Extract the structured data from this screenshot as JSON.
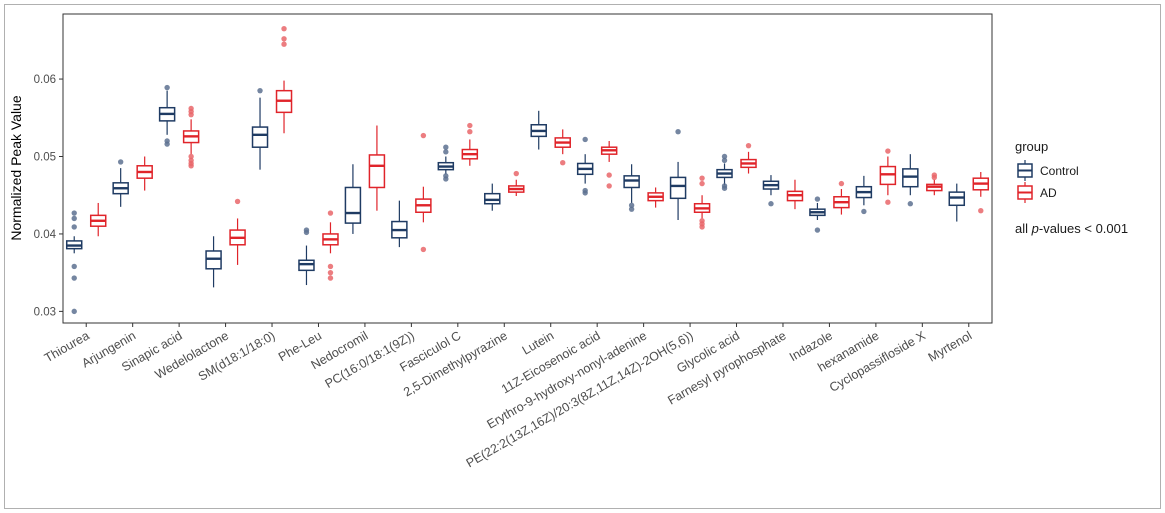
{
  "chart_data": {
    "type": "boxplot",
    "ylabel": "Normalized Peak Value",
    "xlabel": "",
    "ylim": [
      0.0285,
      0.0684
    ],
    "yticks": [
      0.03,
      0.04,
      0.05,
      0.06
    ],
    "ytick_labels": [
      "0.03",
      "0.04",
      "0.05",
      "0.06"
    ],
    "grid": false,
    "legend": {
      "title": "group",
      "position": "right",
      "entries": [
        {
          "name": "Control",
          "color": "#1f3b63"
        },
        {
          "name": "AD",
          "color": "#e0242a"
        }
      ]
    },
    "annotation": {
      "prefix": "all ",
      "italic": "p",
      "suffix": "-values < 0.001"
    },
    "categories": [
      "Thiourea",
      "Arjungenin",
      "Sinapic acid",
      "Wedelolactone",
      "SM(d18:1/18:0)",
      "Phe-Leu",
      "Nedocromil",
      "PC(16:0/18:1(9Z))",
      "Fasciculol C",
      "2,5-Dimethylpyrazine",
      "Lutein",
      "11Z-Eicosenoic acid",
      "Erythro-9-hydroxy-nonyl-adenine",
      "PE(22:2(13Z,16Z)/20:3(8Z,11Z,14Z)-2OH(5,6))",
      "Glycolic acid",
      "Farnesyl pyrophosphate",
      "Indazole",
      "hexanamide",
      "Cyclopassifloside X",
      "Myrtenol"
    ],
    "series": [
      {
        "name": "Control",
        "boxes": [
          {
            "whisker_low": 0.0375,
            "q1": 0.0381,
            "median": 0.0385,
            "q3": 0.0391,
            "whisker_high": 0.0397,
            "outliers": [
              0.03,
              0.0343,
              0.0358,
              0.0409,
              0.042,
              0.0427
            ]
          },
          {
            "whisker_low": 0.0435,
            "q1": 0.0452,
            "median": 0.0459,
            "q3": 0.0466,
            "whisker_high": 0.0485,
            "outliers": [
              0.0493
            ]
          },
          {
            "whisker_low": 0.0528,
            "q1": 0.0546,
            "median": 0.0555,
            "q3": 0.0563,
            "whisker_high": 0.0585,
            "outliers": [
              0.0516,
              0.052,
              0.0589
            ]
          },
          {
            "whisker_low": 0.0331,
            "q1": 0.0355,
            "median": 0.0368,
            "q3": 0.0378,
            "whisker_high": 0.0397,
            "outliers": []
          },
          {
            "whisker_low": 0.0483,
            "q1": 0.0512,
            "median": 0.0528,
            "q3": 0.0538,
            "whisker_high": 0.0576,
            "outliers": [
              0.0585
            ]
          },
          {
            "whisker_low": 0.0334,
            "q1": 0.0353,
            "median": 0.0361,
            "q3": 0.0366,
            "whisker_high": 0.0385,
            "outliers": [
              0.0402,
              0.0405
            ]
          },
          {
            "whisker_low": 0.04,
            "q1": 0.0414,
            "median": 0.0427,
            "q3": 0.046,
            "whisker_high": 0.049,
            "outliers": []
          },
          {
            "whisker_low": 0.0383,
            "q1": 0.0395,
            "median": 0.0405,
            "q3": 0.0416,
            "whisker_high": 0.0443,
            "outliers": []
          },
          {
            "whisker_low": 0.0477,
            "q1": 0.0483,
            "median": 0.0487,
            "q3": 0.0492,
            "whisker_high": 0.05,
            "outliers": [
              0.0471,
              0.0475,
              0.0506,
              0.0512
            ]
          },
          {
            "whisker_low": 0.043,
            "q1": 0.0439,
            "median": 0.0444,
            "q3": 0.0452,
            "whisker_high": 0.0465,
            "outliers": []
          },
          {
            "whisker_low": 0.0509,
            "q1": 0.0526,
            "median": 0.0533,
            "q3": 0.0541,
            "whisker_high": 0.0559,
            "outliers": []
          },
          {
            "whisker_low": 0.0465,
            "q1": 0.0477,
            "median": 0.0484,
            "q3": 0.0491,
            "whisker_high": 0.0503,
            "outliers": [
              0.0453,
              0.0456,
              0.0522
            ]
          },
          {
            "whisker_low": 0.044,
            "q1": 0.046,
            "median": 0.0469,
            "q3": 0.0475,
            "whisker_high": 0.049,
            "outliers": [
              0.0432,
              0.0437
            ]
          },
          {
            "whisker_low": 0.0418,
            "q1": 0.0446,
            "median": 0.0462,
            "q3": 0.0473,
            "whisker_high": 0.0493,
            "outliers": [
              0.0532
            ]
          },
          {
            "whisker_low": 0.0463,
            "q1": 0.0473,
            "median": 0.0478,
            "q3": 0.0483,
            "whisker_high": 0.0491,
            "outliers": [
              0.0459,
              0.0462,
              0.0495,
              0.05
            ]
          },
          {
            "whisker_low": 0.045,
            "q1": 0.0458,
            "median": 0.0463,
            "q3": 0.0468,
            "whisker_high": 0.0476,
            "outliers": [
              0.0439
            ]
          },
          {
            "whisker_low": 0.0418,
            "q1": 0.0424,
            "median": 0.0428,
            "q3": 0.0432,
            "whisker_high": 0.044,
            "outliers": [
              0.0405,
              0.0445
            ]
          },
          {
            "whisker_low": 0.0437,
            "q1": 0.0447,
            "median": 0.0454,
            "q3": 0.0461,
            "whisker_high": 0.0475,
            "outliers": [
              0.0429
            ]
          },
          {
            "whisker_low": 0.045,
            "q1": 0.0461,
            "median": 0.0474,
            "q3": 0.0484,
            "whisker_high": 0.0503,
            "outliers": [
              0.0439
            ]
          },
          {
            "whisker_low": 0.0416,
            "q1": 0.0437,
            "median": 0.0447,
            "q3": 0.0454,
            "whisker_high": 0.0465,
            "outliers": []
          }
        ]
      },
      {
        "name": "AD",
        "boxes": [
          {
            "whisker_low": 0.0397,
            "q1": 0.041,
            "median": 0.0417,
            "q3": 0.0424,
            "whisker_high": 0.044,
            "outliers": []
          },
          {
            "whisker_low": 0.0456,
            "q1": 0.0472,
            "median": 0.048,
            "q3": 0.0488,
            "whisker_high": 0.05,
            "outliers": []
          },
          {
            "whisker_low": 0.0503,
            "q1": 0.0518,
            "median": 0.0526,
            "q3": 0.0533,
            "whisker_high": 0.0548,
            "outliers": [
              0.0488,
              0.0491,
              0.0495,
              0.05,
              0.0554,
              0.0558,
              0.0562
            ]
          },
          {
            "whisker_low": 0.036,
            "q1": 0.0386,
            "median": 0.0395,
            "q3": 0.0405,
            "whisker_high": 0.042,
            "outliers": [
              0.0442
            ]
          },
          {
            "whisker_low": 0.053,
            "q1": 0.0557,
            "median": 0.0572,
            "q3": 0.0585,
            "whisker_high": 0.0598,
            "outliers": [
              0.0645,
              0.0652,
              0.0665
            ]
          },
          {
            "whisker_low": 0.0375,
            "q1": 0.0386,
            "median": 0.0393,
            "q3": 0.04,
            "whisker_high": 0.0415,
            "outliers": [
              0.0343,
              0.035,
              0.0358,
              0.0427
            ]
          },
          {
            "whisker_low": 0.043,
            "q1": 0.046,
            "median": 0.0488,
            "q3": 0.0502,
            "whisker_high": 0.054,
            "outliers": []
          },
          {
            "whisker_low": 0.0415,
            "q1": 0.0428,
            "median": 0.0437,
            "q3": 0.0445,
            "whisker_high": 0.0461,
            "outliers": [
              0.038,
              0.0527
            ]
          },
          {
            "whisker_low": 0.0488,
            "q1": 0.0497,
            "median": 0.0503,
            "q3": 0.0509,
            "whisker_high": 0.0522,
            "outliers": [
              0.0532,
              0.054
            ]
          },
          {
            "whisker_low": 0.0449,
            "q1": 0.0454,
            "median": 0.0458,
            "q3": 0.0462,
            "whisker_high": 0.047,
            "outliers": [
              0.0478
            ]
          },
          {
            "whisker_low": 0.0503,
            "q1": 0.0512,
            "median": 0.0518,
            "q3": 0.0524,
            "whisker_high": 0.0535,
            "outliers": [
              0.0492
            ]
          },
          {
            "whisker_low": 0.0493,
            "q1": 0.0503,
            "median": 0.0508,
            "q3": 0.0512,
            "whisker_high": 0.052,
            "outliers": [
              0.0462,
              0.0476
            ]
          },
          {
            "whisker_low": 0.0434,
            "q1": 0.0443,
            "median": 0.0448,
            "q3": 0.0453,
            "whisker_high": 0.046,
            "outliers": []
          },
          {
            "whisker_low": 0.042,
            "q1": 0.0428,
            "median": 0.0433,
            "q3": 0.0439,
            "whisker_high": 0.045,
            "outliers": [
              0.0409,
              0.0413,
              0.0417,
              0.0465,
              0.0472
            ]
          },
          {
            "whisker_low": 0.0478,
            "q1": 0.0486,
            "median": 0.0491,
            "q3": 0.0496,
            "whisker_high": 0.0506,
            "outliers": [
              0.0514
            ]
          },
          {
            "whisker_low": 0.0432,
            "q1": 0.0443,
            "median": 0.045,
            "q3": 0.0455,
            "whisker_high": 0.047,
            "outliers": []
          },
          {
            "whisker_low": 0.0425,
            "q1": 0.0434,
            "median": 0.0441,
            "q3": 0.0448,
            "whisker_high": 0.0458,
            "outliers": [
              0.0465
            ]
          },
          {
            "whisker_low": 0.045,
            "q1": 0.0464,
            "median": 0.0477,
            "q3": 0.0487,
            "whisker_high": 0.05,
            "outliers": [
              0.0441,
              0.0507
            ]
          },
          {
            "whisker_low": 0.045,
            "q1": 0.0456,
            "median": 0.0461,
            "q3": 0.0464,
            "whisker_high": 0.047,
            "outliers": [
              0.0473,
              0.0476
            ]
          },
          {
            "whisker_low": 0.0448,
            "q1": 0.0457,
            "median": 0.0465,
            "q3": 0.0472,
            "whisker_high": 0.048,
            "outliers": [
              0.043
            ]
          }
        ]
      }
    ]
  }
}
